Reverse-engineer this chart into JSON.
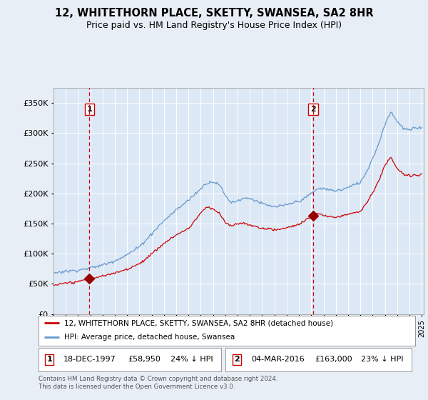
{
  "title1": "12, WHITETHORN PLACE, SKETTY, SWANSEA, SA2 8HR",
  "title2": "Price paid vs. HM Land Registry's House Price Index (HPI)",
  "background_color": "#e8eef5",
  "plot_bg_color": "#dce8f5",
  "sale1_price": 58950,
  "sale1_label": "18-DEC-1997",
  "sale1_amount": "£58,950",
  "sale1_hpi": "24% ↓ HPI",
  "sale2_price": 163000,
  "sale2_label": "04-MAR-2016",
  "sale2_amount": "£163,000",
  "sale2_hpi": "23% ↓ HPI",
  "legend_line1": "12, WHITETHORN PLACE, SKETTY, SWANSEA, SA2 8HR (detached house)",
  "legend_line2": "HPI: Average price, detached house, Swansea",
  "footer": "Contains HM Land Registry data © Crown copyright and database right 2024.\nThis data is licensed under the Open Government Licence v3.0.",
  "hpi_color": "#6699cc",
  "price_color": "#cc0000",
  "vline_color": "#cc0000",
  "marker_color": "#990000",
  "ylim_max": 375000,
  "ylim_min": 0,
  "hpi_key_dates": [
    1995.0,
    1995.5,
    1996.0,
    1996.5,
    1997.0,
    1997.5,
    1998.0,
    1998.5,
    1999.0,
    1999.5,
    2000.0,
    2000.5,
    2001.0,
    2001.5,
    2002.0,
    2002.5,
    2003.0,
    2003.5,
    2004.0,
    2004.5,
    2005.0,
    2005.5,
    2006.0,
    2006.5,
    2007.0,
    2007.5,
    2008.0,
    2008.5,
    2009.0,
    2009.5,
    2010.0,
    2010.5,
    2011.0,
    2011.5,
    2012.0,
    2012.5,
    2013.0,
    2013.5,
    2014.0,
    2014.5,
    2015.0,
    2015.5,
    2016.0,
    2016.5,
    2017.0,
    2017.5,
    2018.0,
    2018.5,
    2019.0,
    2019.5,
    2020.0,
    2020.5,
    2021.0,
    2021.5,
    2022.0,
    2022.5,
    2023.0,
    2023.5,
    2024.0,
    2024.5,
    2025.0
  ],
  "hpi_key_values": [
    68000,
    70000,
    71000,
    72000,
    73000,
    75000,
    77000,
    79000,
    82000,
    85000,
    89000,
    94000,
    99000,
    105000,
    112000,
    122000,
    133000,
    144000,
    154000,
    163000,
    172000,
    180000,
    188000,
    198000,
    208000,
    218000,
    220000,
    215000,
    196000,
    185000,
    188000,
    192000,
    192000,
    188000,
    183000,
    180000,
    178000,
    179000,
    181000,
    184000,
    187000,
    192000,
    200000,
    207000,
    208000,
    205000,
    204000,
    206000,
    210000,
    214000,
    218000,
    235000,
    258000,
    282000,
    315000,
    335000,
    320000,
    308000,
    305000,
    308000,
    310000
  ],
  "price_key_dates": [
    1995.0,
    1996.0,
    1997.0,
    1997.96,
    1999.0,
    2000.0,
    2001.0,
    2002.0,
    2003.0,
    2004.0,
    2005.0,
    2006.0,
    2007.0,
    2007.5,
    2008.0,
    2008.5,
    2009.0,
    2009.5,
    2010.0,
    2010.5,
    2011.0,
    2011.5,
    2012.0,
    2012.5,
    2013.0,
    2013.5,
    2014.0,
    2014.5,
    2015.0,
    2016.17,
    2016.5,
    2017.0,
    2017.5,
    2018.0,
    2018.5,
    2019.0,
    2019.5,
    2020.0,
    2020.5,
    2021.0,
    2021.5,
    2022.0,
    2022.5,
    2023.0,
    2023.5,
    2024.0,
    2024.5,
    2025.0
  ],
  "price_key_values": [
    48000,
    51000,
    54000,
    58950,
    63000,
    68000,
    75000,
    84000,
    100000,
    118000,
    132000,
    142000,
    168000,
    178000,
    174000,
    168000,
    152000,
    147000,
    150000,
    152000,
    148000,
    145000,
    143000,
    142000,
    140000,
    141000,
    143000,
    146000,
    149000,
    163000,
    166000,
    163000,
    161000,
    160000,
    162000,
    165000,
    168000,
    170000,
    183000,
    200000,
    220000,
    245000,
    260000,
    240000,
    232000,
    228000,
    230000,
    232000
  ]
}
